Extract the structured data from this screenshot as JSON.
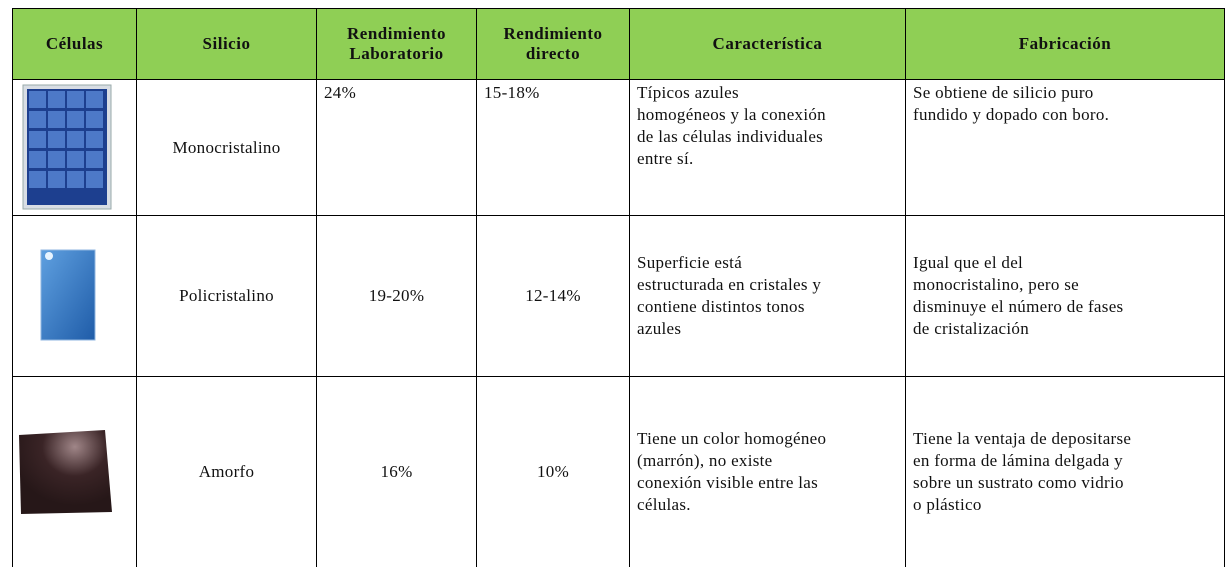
{
  "header": {
    "columns": [
      "Células",
      "Silicio",
      [
        "Rendimiento",
        "Laboratorio"
      ],
      [
        "Rendimiento",
        "directo"
      ],
      "Característica",
      "Fabricación"
    ]
  },
  "rows": [
    {
      "silicio": "Monocristalino",
      "laboratorio": "24%",
      "directo": "15-18%",
      "caracteristica": [
        "Típicos azules",
        "homogéneos y la conexión",
        "de las células individuales",
        "entre sí."
      ],
      "fabricacion": [
        "Se obtiene de silicio puro",
        "fundido y dopado  con boro."
      ]
    },
    {
      "silicio": "Policristalino",
      "laboratorio": "19-20%",
      "directo": "12-14%",
      "caracteristica": [
        "Superficie está",
        "estructurada en cristales y",
        "contiene distintos tonos",
        "azules"
      ],
      "fabricacion": [
        "Igual que el del",
        "monocristalino, pero se",
        "disminuye el número de fases",
        "de cristalización"
      ]
    },
    {
      "silicio": "Amorfo",
      "laboratorio": "16%",
      "directo": "10%",
      "caracteristica": [
        "Tiene un color homogéneo",
        "(marrón), no existe",
        "conexión visible entre las",
        "células."
      ],
      "fabricacion": [
        "Tiene la ventaja de depositarse",
        "en forma de lámina delgada y",
        "sobre un sustrato como vidrio",
        "o plástico"
      ]
    }
  ]
}
